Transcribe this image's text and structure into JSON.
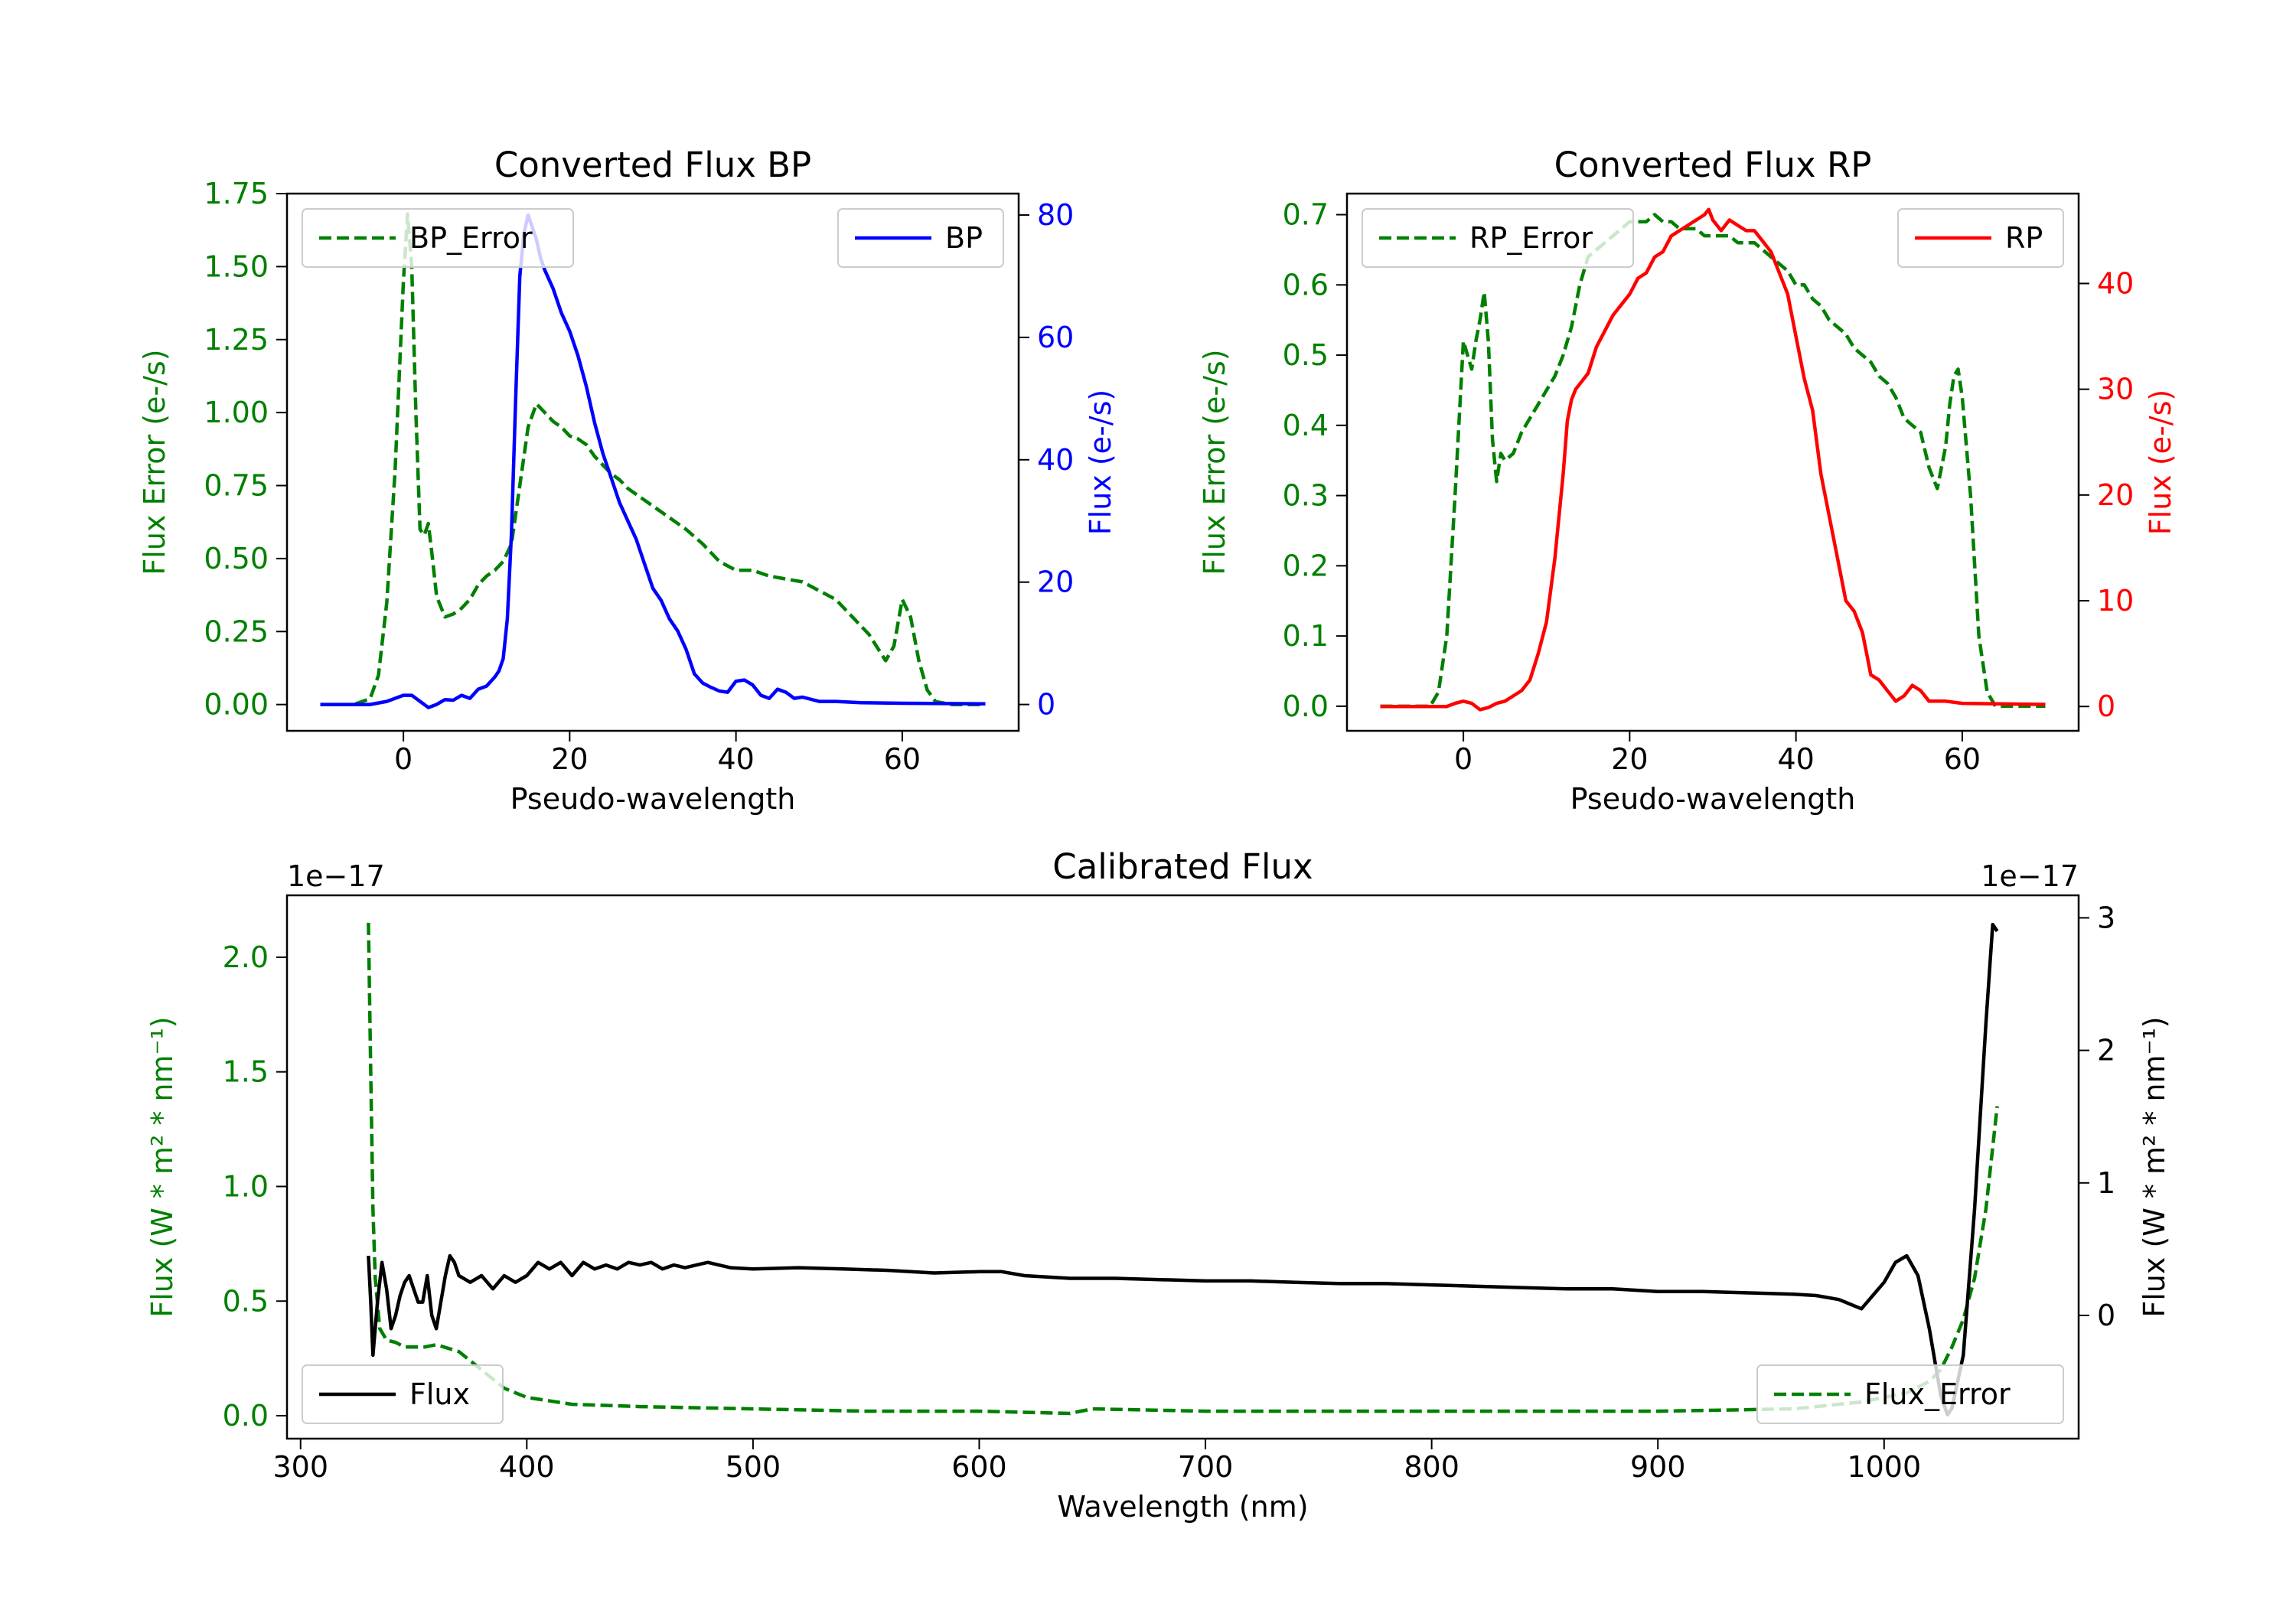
{
  "chart_data": [
    {
      "id": "bp",
      "type": "line",
      "title": "Converted Flux BP",
      "xlabel": "Pseudo-wavelength",
      "xlim": [
        -14,
        74
      ],
      "xticks": [
        0,
        20,
        40,
        60
      ],
      "left_axis": {
        "label": "Flux Error (e-/s)",
        "color": "#008000",
        "ylim": [
          -0.09,
          1.75
        ],
        "ticks": [
          0.0,
          0.25,
          0.5,
          0.75,
          1.0,
          1.25,
          1.5,
          1.75
        ],
        "tick_labels": [
          "0.00",
          "0.25",
          "0.50",
          "0.75",
          "1.00",
          "1.25",
          "1.50",
          "1.75"
        ]
      },
      "right_axis": {
        "label": "Flux (e-/s)",
        "color": "#0000ff",
        "ylim": [
          -4.3,
          83.5
        ],
        "ticks": [
          0,
          20,
          40,
          60,
          80
        ],
        "tick_labels": [
          "0",
          "20",
          "40",
          "60",
          "80"
        ]
      },
      "series": [
        {
          "name": "BP_Error",
          "axis": "left",
          "color": "#008000",
          "dash": true,
          "legend": "BP_Error",
          "legend_pos": "upper-left",
          "x": [
            -10,
            -6,
            -4,
            -3,
            -2,
            -1,
            0,
            0.5,
            1,
            1.5,
            2,
            2.5,
            3,
            3.5,
            4,
            5,
            6,
            7,
            8,
            9,
            10,
            11,
            12,
            13,
            14,
            15,
            16,
            17,
            18,
            19,
            20,
            21,
            22,
            23,
            24,
            25,
            26,
            27,
            28,
            30,
            32,
            34,
            36,
            38,
            40,
            42,
            44,
            46,
            48,
            50,
            52,
            54,
            56,
            58,
            59,
            60,
            61,
            62,
            63,
            64,
            66,
            68,
            70
          ],
          "y": [
            0.0,
            0.0,
            0.02,
            0.1,
            0.35,
            0.8,
            1.45,
            1.68,
            1.5,
            1.0,
            0.6,
            0.58,
            0.62,
            0.5,
            0.37,
            0.3,
            0.31,
            0.33,
            0.36,
            0.41,
            0.44,
            0.46,
            0.49,
            0.55,
            0.75,
            0.95,
            1.03,
            1.0,
            0.97,
            0.95,
            0.92,
            0.91,
            0.89,
            0.85,
            0.82,
            0.79,
            0.77,
            0.74,
            0.72,
            0.68,
            0.64,
            0.6,
            0.55,
            0.49,
            0.46,
            0.46,
            0.44,
            0.43,
            0.42,
            0.39,
            0.36,
            0.3,
            0.24,
            0.15,
            0.2,
            0.36,
            0.3,
            0.15,
            0.05,
            0.01,
            0.0,
            0.0,
            0.0
          ]
        },
        {
          "name": "BP",
          "axis": "right",
          "color": "#0000ff",
          "dash": false,
          "legend": "BP",
          "legend_pos": "upper-right",
          "x": [
            -10,
            -4,
            -2,
            0,
            1,
            2,
            3,
            4,
            5,
            6,
            7,
            8,
            9,
            10,
            11,
            11.5,
            12,
            12.5,
            13,
            13.5,
            14,
            14.5,
            15,
            15.5,
            16,
            16.5,
            17,
            18,
            19,
            20,
            21,
            22,
            23,
            24,
            25,
            26,
            27,
            28,
            29,
            30,
            31,
            32,
            33,
            34,
            35,
            36,
            37,
            38,
            39,
            40,
            41,
            42,
            43,
            44,
            45,
            46,
            47,
            48,
            50,
            52,
            55,
            60,
            70
          ],
          "y": [
            0,
            0,
            0.5,
            1.5,
            1.5,
            0.5,
            -0.5,
            0.0,
            0.8,
            0.7,
            1.5,
            1.0,
            2.5,
            3.0,
            4.5,
            5.5,
            7.5,
            14,
            28,
            50,
            70,
            77,
            80,
            78,
            76,
            73,
            71,
            68,
            64,
            61,
            57,
            52,
            46,
            41,
            37,
            33,
            30,
            27,
            23,
            19,
            17,
            14,
            12,
            9,
            5,
            3.5,
            2.8,
            2.2,
            2.0,
            3.8,
            4.0,
            3.2,
            1.5,
            1.0,
            2.5,
            2.0,
            1.0,
            1.2,
            0.5,
            0.5,
            0.3,
            0.2,
            0.1
          ]
        }
      ]
    },
    {
      "id": "rp",
      "type": "line",
      "title": "Converted Flux RP",
      "xlabel": "Pseudo-wavelength",
      "xlim": [
        -14,
        74
      ],
      "xticks": [
        0,
        20,
        40,
        60
      ],
      "left_axis": {
        "label": "Flux Error (e-/s)",
        "color": "#008000",
        "ylim": [
          -0.035,
          0.73
        ],
        "ticks": [
          0.0,
          0.1,
          0.2,
          0.3,
          0.4,
          0.5,
          0.6,
          0.7
        ],
        "tick_labels": [
          "0.0",
          "0.1",
          "0.2",
          "0.3",
          "0.4",
          "0.5",
          "0.6",
          "0.7"
        ]
      },
      "right_axis": {
        "label": "Flux (e-/s)",
        "color": "#ff0000",
        "ylim": [
          -2.3,
          48.5
        ],
        "ticks": [
          0,
          10,
          20,
          30,
          40
        ],
        "tick_labels": [
          "0",
          "10",
          "20",
          "30",
          "40"
        ]
      },
      "series": [
        {
          "name": "RP_Error",
          "axis": "left",
          "color": "#008000",
          "dash": true,
          "legend": "RP_Error",
          "legend_pos": "upper-left",
          "x": [
            -10,
            -4,
            -3,
            -2,
            -1,
            0,
            0.5,
            1,
            1.5,
            2,
            2.5,
            3,
            3.5,
            4,
            4.5,
            5,
            6,
            7,
            8,
            9,
            10,
            11,
            12,
            13,
            14,
            15,
            16,
            17,
            18,
            19,
            20,
            21,
            22,
            23,
            24,
            25,
            26,
            27,
            28,
            29,
            30,
            31,
            32,
            33,
            34,
            35,
            36,
            37,
            38,
            39,
            40,
            41,
            42,
            43,
            44,
            45,
            46,
            47,
            48,
            49,
            50,
            51,
            52,
            53,
            54,
            55,
            56,
            57,
            58,
            58.5,
            59,
            59.5,
            60,
            61,
            62,
            63,
            64,
            66,
            70
          ],
          "y": [
            0.0,
            0.0,
            0.02,
            0.1,
            0.3,
            0.52,
            0.5,
            0.48,
            0.52,
            0.55,
            0.59,
            0.52,
            0.38,
            0.32,
            0.36,
            0.35,
            0.36,
            0.39,
            0.41,
            0.43,
            0.45,
            0.47,
            0.5,
            0.54,
            0.6,
            0.64,
            0.65,
            0.66,
            0.67,
            0.68,
            0.69,
            0.69,
            0.69,
            0.7,
            0.69,
            0.69,
            0.68,
            0.68,
            0.68,
            0.67,
            0.67,
            0.67,
            0.67,
            0.66,
            0.66,
            0.66,
            0.65,
            0.64,
            0.63,
            0.62,
            0.6,
            0.6,
            0.58,
            0.57,
            0.55,
            0.54,
            0.53,
            0.51,
            0.5,
            0.49,
            0.47,
            0.46,
            0.44,
            0.41,
            0.4,
            0.39,
            0.34,
            0.31,
            0.37,
            0.43,
            0.47,
            0.48,
            0.44,
            0.3,
            0.1,
            0.02,
            0.0,
            0.0,
            0.0
          ]
        },
        {
          "name": "RP",
          "axis": "right",
          "color": "#ff0000",
          "dash": false,
          "legend": "RP",
          "legend_pos": "upper-right",
          "x": [
            -10,
            -4,
            -2,
            -1,
            0,
            1,
            2,
            3,
            4,
            5,
            6,
            7,
            8,
            9,
            10,
            11,
            12,
            12.5,
            13,
            13.5,
            14,
            15,
            16,
            17,
            18,
            19,
            20,
            21,
            22,
            23,
            24,
            25,
            26,
            27,
            28,
            29,
            29.5,
            30,
            31,
            32,
            33,
            34,
            35,
            36,
            37,
            38,
            39,
            40,
            41,
            42,
            43,
            44,
            45,
            46,
            47,
            48,
            48.5,
            49,
            50,
            51,
            52,
            53,
            54,
            55,
            56,
            58,
            60,
            70
          ],
          "y": [
            0,
            0,
            0,
            0.3,
            0.5,
            0.3,
            -0.3,
            -0.1,
            0.3,
            0.5,
            1.0,
            1.5,
            2.5,
            5,
            8,
            14,
            22,
            27,
            29,
            30,
            30.5,
            31.5,
            34,
            35.5,
            37,
            38,
            39,
            40.5,
            41,
            42.5,
            43,
            44.5,
            45,
            45.5,
            46,
            46.5,
            47,
            46,
            45,
            46,
            45.5,
            45,
            45,
            44,
            43,
            41,
            39,
            35,
            31,
            28,
            22,
            18,
            14,
            10,
            9,
            7,
            5,
            3,
            2.5,
            1.5,
            0.5,
            1,
            2,
            1.5,
            0.5,
            0.5,
            0.3,
            0.2
          ]
        }
      ]
    },
    {
      "id": "cal",
      "type": "line",
      "title": "Calibrated Flux",
      "xlabel": "Wavelength (nm)",
      "xlim": [
        294,
        1086
      ],
      "xticks": [
        300,
        400,
        500,
        600,
        700,
        800,
        900,
        1000
      ],
      "left_axis": {
        "label": "Flux (W * m² * nm⁻¹)",
        "offset_text": "1e−17",
        "color": "#008000",
        "ylim": [
          -0.1,
          2.27
        ],
        "ticks": [
          0.0,
          0.5,
          1.0,
          1.5,
          2.0
        ],
        "tick_labels": [
          "0.0",
          "0.5",
          "1.0",
          "1.5",
          "2.0"
        ]
      },
      "right_axis": {
        "label": "Flux (W * m² * nm⁻¹)",
        "offset_text": "1e−17",
        "color": "#000000",
        "ylim": [
          -0.93,
          3.17
        ],
        "ticks": [
          0,
          1,
          2,
          3
        ],
        "tick_labels": [
          "0",
          "1",
          "2",
          "3"
        ]
      },
      "series": [
        {
          "name": "Flux_Error",
          "axis": "left",
          "color": "#008000",
          "dash": true,
          "legend": "Flux_Error",
          "legend_pos": "lower-right",
          "x": [
            330,
            331,
            332,
            333,
            335,
            338,
            342,
            346,
            350,
            355,
            360,
            370,
            380,
            390,
            400,
            420,
            450,
            500,
            550,
            600,
            640,
            650,
            700,
            800,
            900,
            960,
            990,
            1010,
            1020,
            1025,
            1030,
            1035,
            1040,
            1045,
            1050
          ],
          "y": [
            2.15,
            1.5,
            0.9,
            0.6,
            0.38,
            0.33,
            0.32,
            0.3,
            0.3,
            0.3,
            0.31,
            0.28,
            0.2,
            0.12,
            0.08,
            0.05,
            0.04,
            0.03,
            0.02,
            0.02,
            0.01,
            0.03,
            0.02,
            0.02,
            0.02,
            0.03,
            0.06,
            0.1,
            0.15,
            0.2,
            0.3,
            0.42,
            0.6,
            0.9,
            1.35
          ]
        },
        {
          "name": "Flux",
          "axis": "right",
          "color": "#000000",
          "dash": false,
          "legend": "Flux",
          "legend_pos": "lower-left",
          "x": [
            330,
            331,
            332,
            334,
            336,
            338,
            340,
            342,
            344,
            346,
            348,
            350,
            352,
            354,
            356,
            358,
            360,
            362,
            364,
            366,
            368,
            370,
            375,
            380,
            385,
            390,
            395,
            400,
            405,
            410,
            415,
            420,
            425,
            430,
            435,
            440,
            445,
            450,
            455,
            460,
            465,
            470,
            475,
            480,
            490,
            500,
            520,
            540,
            560,
            580,
            600,
            610,
            620,
            640,
            660,
            680,
            700,
            720,
            740,
            760,
            780,
            800,
            820,
            840,
            860,
            880,
            900,
            920,
            940,
            960,
            970,
            980,
            990,
            1000,
            1005,
            1010,
            1015,
            1020,
            1025,
            1028,
            1030,
            1035,
            1040,
            1045,
            1048,
            1050
          ],
          "y": [
            0.45,
            0.1,
            -0.3,
            0.1,
            0.4,
            0.2,
            -0.1,
            0.0,
            0.15,
            0.25,
            0.3,
            0.2,
            0.1,
            0.1,
            0.3,
            0.0,
            -0.1,
            0.1,
            0.3,
            0.45,
            0.4,
            0.3,
            0.25,
            0.3,
            0.2,
            0.3,
            0.25,
            0.3,
            0.4,
            0.35,
            0.4,
            0.3,
            0.4,
            0.35,
            0.38,
            0.35,
            0.4,
            0.38,
            0.4,
            0.35,
            0.38,
            0.36,
            0.38,
            0.4,
            0.36,
            0.35,
            0.36,
            0.35,
            0.34,
            0.32,
            0.33,
            0.33,
            0.3,
            0.28,
            0.28,
            0.27,
            0.26,
            0.26,
            0.25,
            0.24,
            0.24,
            0.23,
            0.22,
            0.21,
            0.2,
            0.2,
            0.18,
            0.18,
            0.17,
            0.16,
            0.15,
            0.12,
            0.05,
            0.25,
            0.4,
            0.45,
            0.3,
            -0.1,
            -0.6,
            -0.75,
            -0.7,
            -0.3,
            0.8,
            2.2,
            2.95,
            2.9
          ]
        }
      ]
    }
  ]
}
